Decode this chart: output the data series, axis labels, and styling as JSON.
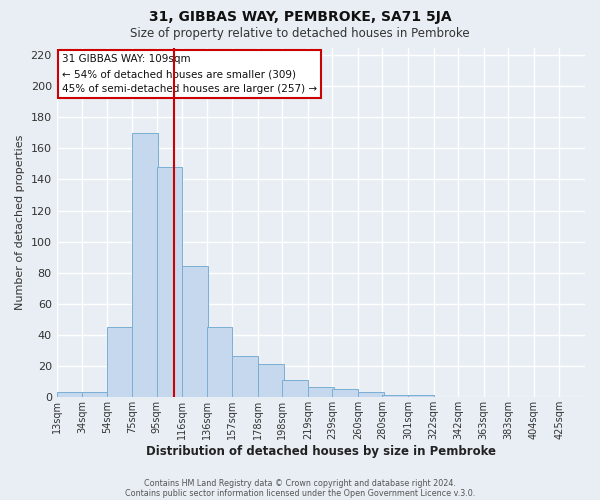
{
  "title": "31, GIBBAS WAY, PEMBROKE, SA71 5JA",
  "subtitle": "Size of property relative to detached houses in Pembroke",
  "xlabel": "Distribution of detached houses by size in Pembroke",
  "ylabel": "Number of detached properties",
  "bar_heights": [
    3,
    3,
    45,
    170,
    148,
    84,
    45,
    26,
    21,
    11,
    6,
    5,
    3,
    1,
    1,
    0,
    0,
    0,
    0,
    0,
    0
  ],
  "bin_labels": [
    "13sqm",
    "34sqm",
    "54sqm",
    "75sqm",
    "95sqm",
    "116sqm",
    "136sqm",
    "157sqm",
    "178sqm",
    "198sqm",
    "219sqm",
    "239sqm",
    "260sqm",
    "280sqm",
    "301sqm",
    "322sqm",
    "342sqm",
    "363sqm",
    "383sqm",
    "404sqm",
    "425sqm"
  ],
  "bin_starts": [
    13,
    34,
    54,
    75,
    95,
    116,
    136,
    157,
    178,
    198,
    219,
    239,
    260,
    280,
    301,
    322,
    342,
    363,
    383,
    404,
    425
  ],
  "bin_width": 21,
  "ylim": [
    0,
    225
  ],
  "yticks": [
    0,
    20,
    40,
    60,
    80,
    100,
    120,
    140,
    160,
    180,
    200,
    220
  ],
  "bar_color": "#c5d8ed",
  "bar_edge_color": "#7aaed4",
  "vline_x": 109,
  "vline_color": "#cc0000",
  "annotation_title": "31 GIBBAS WAY: 109sqm",
  "annotation_line1": "← 54% of detached houses are smaller (309)",
  "annotation_line2": "45% of semi-detached houses are larger (257) →",
  "annotation_box_color": "#ffffff",
  "annotation_box_edge": "#cc0000",
  "footer_line1": "Contains HM Land Registry data © Crown copyright and database right 2024.",
  "footer_line2": "Contains public sector information licensed under the Open Government Licence v.3.0.",
  "background_color": "#e8eef4",
  "plot_background": "#e8eef4",
  "grid_color": "#ffffff"
}
